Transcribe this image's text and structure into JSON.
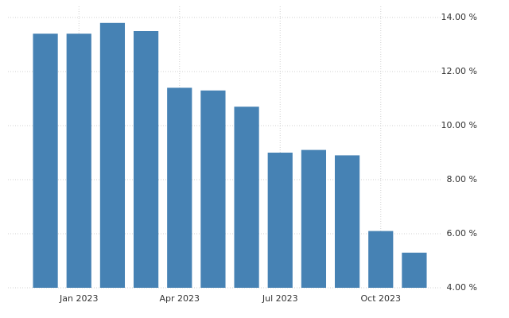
{
  "chart_data": {
    "type": "bar",
    "categories": [
      null,
      "Jan 2023",
      null,
      null,
      "Apr 2023",
      null,
      null,
      "Jul 2023",
      null,
      null,
      "Oct 2023",
      null
    ],
    "values": [
      13.4,
      13.4,
      13.8,
      13.5,
      11.4,
      11.3,
      10.7,
      9.0,
      9.1,
      8.9,
      6.1,
      5.3
    ],
    "color": "#4682b4",
    "ylim": [
      4,
      14
    ],
    "yticks": [
      {
        "value": 4,
        "label": "4.00 %"
      },
      {
        "value": 6,
        "label": "6.00 %"
      },
      {
        "value": 8,
        "label": "8.00 %"
      },
      {
        "value": 10,
        "label": "10.00 %"
      },
      {
        "value": 12,
        "label": "12.00 %"
      },
      {
        "value": 14,
        "label": "14.00 %"
      }
    ],
    "grid": true
  }
}
